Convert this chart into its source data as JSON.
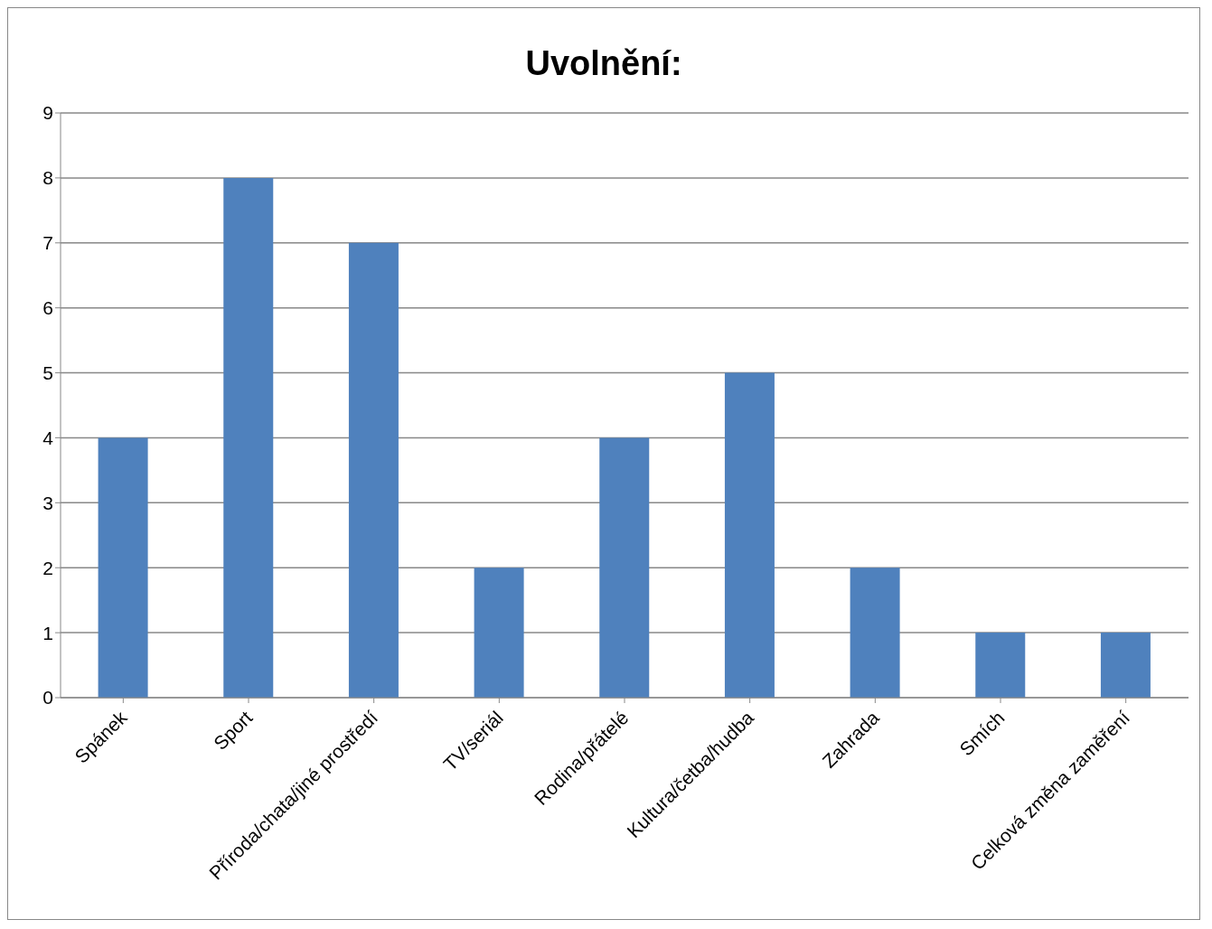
{
  "chart_data": {
    "type": "bar",
    "title": "Uvolnění:",
    "categories": [
      "Spánek",
      "Sport",
      "Příroda/chata/jiné prostředí",
      "TV/seriál",
      "Rodina/přátelé",
      "Kultura/četba/hudba",
      "Zahrada",
      "Smích",
      "Celková změna zaměření"
    ],
    "values": [
      4,
      8,
      7,
      2,
      4,
      5,
      2,
      1,
      1
    ],
    "color": "#4f81bd",
    "ylim": [
      0,
      9
    ],
    "yticks": [
      0,
      1,
      2,
      3,
      4,
      5,
      6,
      7,
      8,
      9
    ],
    "grid": "y",
    "legend": false
  }
}
